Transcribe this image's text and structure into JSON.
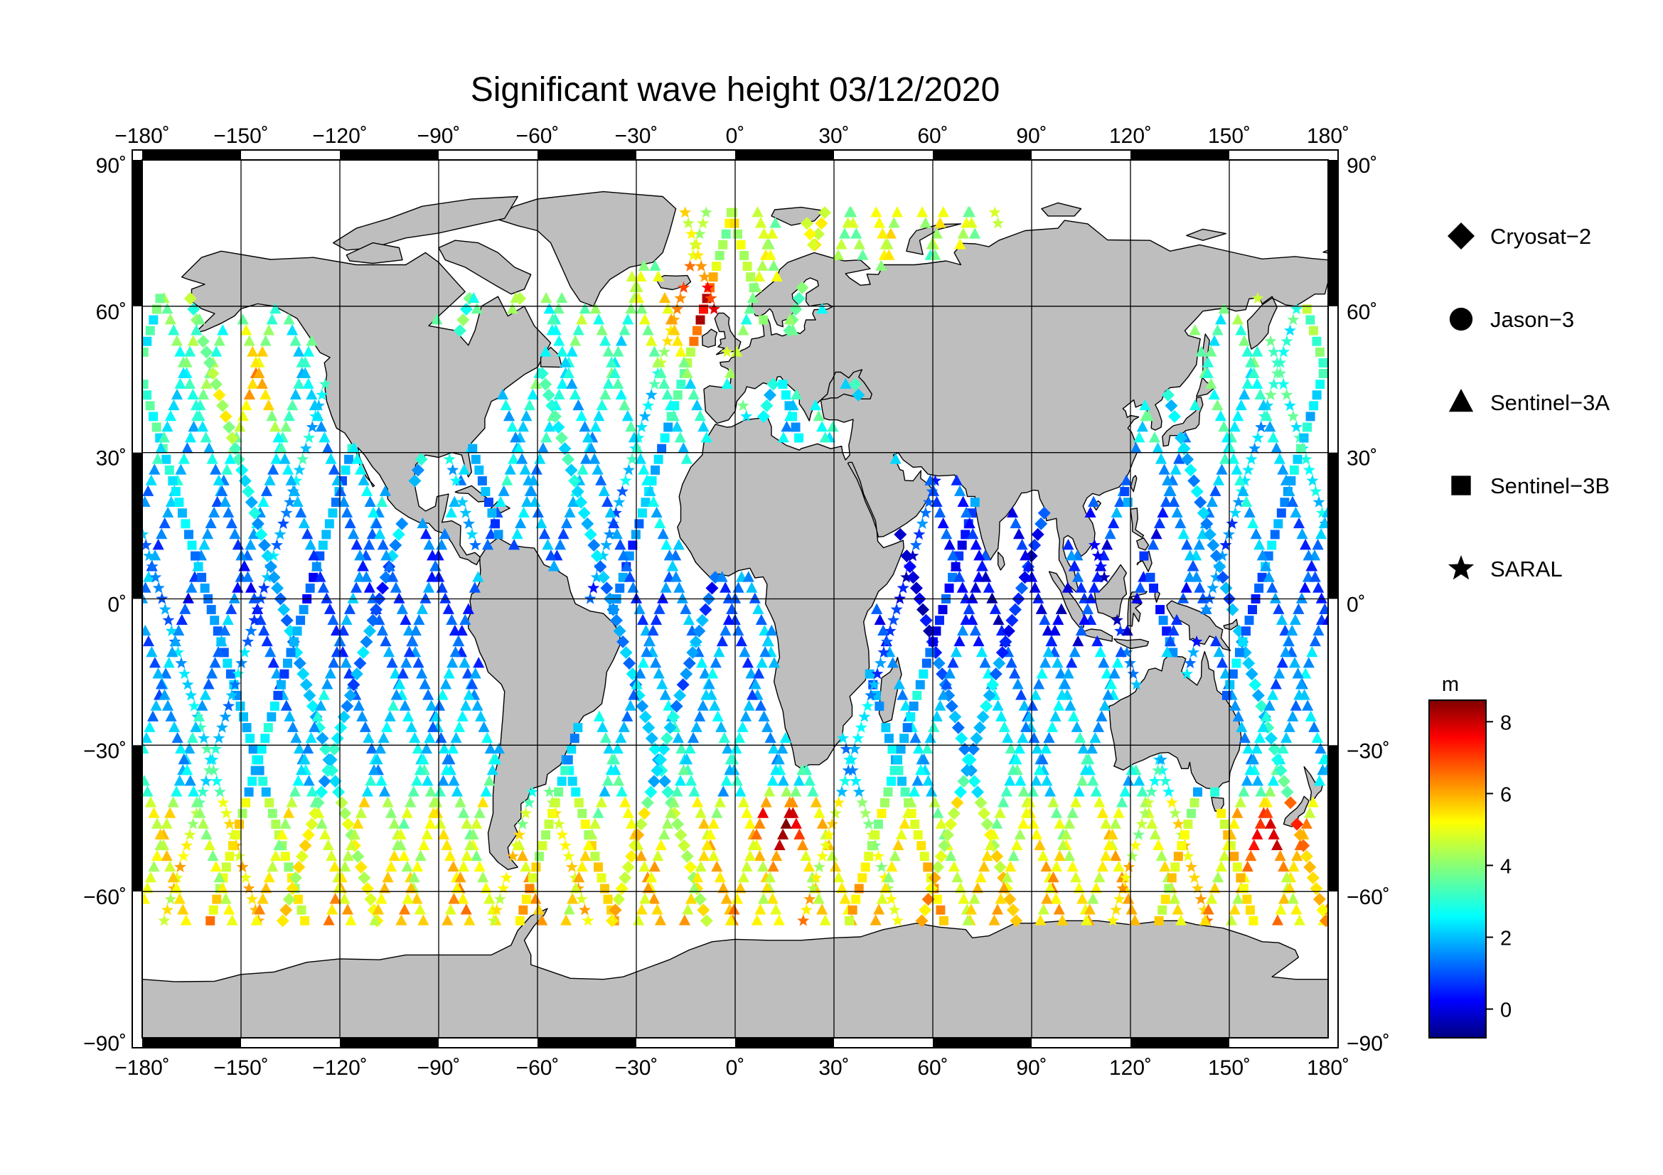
{
  "title": "Significant wave height 03/12/2020",
  "map": {
    "projection": "equirectangular",
    "lon_range": [
      -180,
      180
    ],
    "lat_range": [
      -90,
      90
    ],
    "lon_ticks": [
      -180,
      -150,
      -120,
      -90,
      -60,
      -30,
      0,
      30,
      60,
      90,
      120,
      150,
      180
    ],
    "lat_ticks": [
      90,
      60,
      30,
      0,
      -30,
      -60,
      -90
    ],
    "lon_tick_labels": [
      "−180˚",
      "−150˚",
      "−120˚",
      "−90˚",
      "−60˚",
      "−30˚",
      "0˚",
      "30˚",
      "60˚",
      "90˚",
      "120˚",
      "150˚",
      "180˚"
    ],
    "lat_tick_labels": [
      "90˚",
      "60˚",
      "30˚",
      "0˚",
      "−30˚",
      "−60˚",
      "−90˚"
    ],
    "grid": true,
    "land_color": "#bebebe",
    "ocean_color": "#ffffff"
  },
  "legend": {
    "items": [
      {
        "label": "Cryosat−2",
        "symbol": "diamond"
      },
      {
        "label": "Jason−3",
        "symbol": "circle"
      },
      {
        "label": "Sentinel−3A",
        "symbol": "triangle"
      },
      {
        "label": "Sentinel−3B",
        "symbol": "square"
      },
      {
        "label": "SARAL",
        "symbol": "star"
      }
    ]
  },
  "colorbar": {
    "unit": "m",
    "range": [
      -0.8,
      8.6
    ],
    "ticks": [
      0,
      2,
      4,
      6,
      8
    ],
    "colormap": "jet"
  }
}
